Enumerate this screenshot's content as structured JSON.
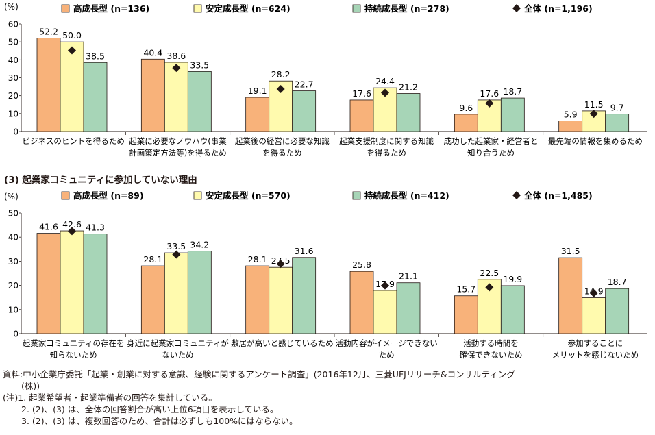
{
  "colors": {
    "high_growth": "#F8B27A",
    "stable_growth": "#FFFAAE",
    "sustained_growth": "#A7D5B7",
    "overall": "#231815"
  },
  "section_title": "(3) 起業家コミュニティに参加していない理由",
  "chart_data": [
    {
      "type": "bar",
      "unit_label": "(%)",
      "ylim": [
        0,
        60
      ],
      "yticks": [
        0,
        10,
        20,
        30,
        40,
        50,
        60
      ],
      "legend": {
        "placement": "top",
        "entries": [
          "高成長型 (n=136)",
          "安定成長型 (n=624)",
          "持続成長型 (n=278)",
          "全体 (n=1,196)"
        ]
      },
      "categories": [
        [
          "ビジネスのヒントを得るため"
        ],
        [
          "起業に必要なノウハウ(事業",
          "計画策定方法等)を得るため"
        ],
        [
          "起業後の経営に必要な知識",
          "を得るため"
        ],
        [
          "起業支援制度に関する知識",
          "を得るため"
        ],
        [
          "成功した起業家・経営者と",
          "知り合うため"
        ],
        [
          "最先端の情報を集めるため"
        ]
      ],
      "series": [
        {
          "name": "高成長型",
          "values": [
            52.2,
            40.4,
            19.1,
            17.6,
            9.6,
            5.9
          ]
        },
        {
          "name": "安定成長型",
          "values": [
            50.0,
            38.6,
            28.2,
            24.4,
            17.6,
            11.5
          ]
        },
        {
          "name": "持続成長型",
          "values": [
            38.5,
            33.5,
            22.7,
            21.2,
            18.7,
            9.7
          ]
        }
      ],
      "overall_marker": {
        "name": "全体",
        "values": [
          45.3,
          35.5,
          23.7,
          21.6,
          15.7,
          9.9
        ]
      }
    },
    {
      "type": "bar",
      "unit_label": "(%)",
      "ylim": [
        0,
        50
      ],
      "yticks": [
        0,
        10,
        20,
        30,
        40,
        50
      ],
      "legend": {
        "placement": "top",
        "entries": [
          "高成長型 (n=89)",
          "安定成長型 (n=570)",
          "持続成長型 (n=412)",
          "全体 (n=1,485)"
        ]
      },
      "categories": [
        [
          "起業家コミュニティの存在を",
          "知らないため"
        ],
        [
          "身近に起業家コミュニティが",
          "ないため"
        ],
        [
          "敷居が高いと感じているため"
        ],
        [
          "活動内容がイメージできない",
          "ため"
        ],
        [
          "活動する時間を",
          "確保できないため"
        ],
        [
          "参加することに",
          "メリットを感じないため"
        ]
      ],
      "series": [
        {
          "name": "高成長型",
          "values": [
            41.6,
            28.1,
            28.1,
            25.8,
            15.7,
            31.5
          ]
        },
        {
          "name": "安定成長型",
          "values": [
            42.6,
            33.5,
            27.5,
            17.9,
            22.5,
            14.9
          ]
        },
        {
          "name": "持続成長型",
          "values": [
            41.3,
            34.2,
            31.6,
            21.1,
            19.9,
            18.7
          ]
        }
      ],
      "overall_marker": {
        "name": "全体",
        "values": [
          42.5,
          32.8,
          28.9,
          20.0,
          19.2,
          16.8
        ]
      }
    }
  ],
  "notes": {
    "source": "資料:中小企業庁委託「起業・創業に対する意識、経験に関するアンケート調査」(2016年12月、三菱UFJリサーチ&コンサルティング",
    "source_cont": "(株))",
    "note1": "(注)1. 起業希望者・起業準備者の回答を集計している。",
    "note2": "2. (2)、(3) は、全体の回答割合が高い上位6項目を表示している。",
    "note3": "3. (2)、(3) は、複数回答のため、合計は必ずしも100%にはならない。"
  }
}
